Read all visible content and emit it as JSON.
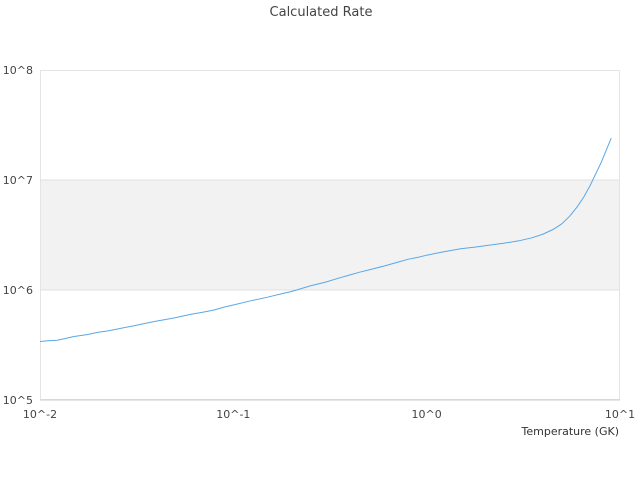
{
  "chart_data": {
    "type": "line",
    "title": "Calculated Rate",
    "xlabel": "Temperature (GK)",
    "ylabel": "",
    "x_scale": "log",
    "y_scale": "log",
    "xlim": [
      0.01,
      10
    ],
    "ylim": [
      100000,
      100000000
    ],
    "x_ticks": [
      0.01,
      0.1,
      1,
      10
    ],
    "x_tick_labels": [
      "10^-2",
      "10^-1",
      "10^0",
      "10^1"
    ],
    "y_ticks": [
      100000,
      1000000,
      10000000,
      100000000
    ],
    "y_tick_labels": [
      "10^5",
      "10^6",
      "10^7",
      "10^8"
    ],
    "shaded_band": [
      1000000,
      10000000
    ],
    "grid": false,
    "colors": {
      "line": "#5aa7e6",
      "band": "#f2f2f2",
      "axis": "#cccccc"
    },
    "series": [
      {
        "x": [
          0.01,
          0.011,
          0.0123,
          0.0135,
          0.015,
          0.0175,
          0.02,
          0.0225,
          0.025,
          0.03,
          0.035,
          0.04,
          0.045,
          0.05,
          0.06,
          0.07,
          0.08,
          0.09,
          0.1,
          0.12,
          0.15,
          0.18,
          0.2,
          0.25,
          0.3,
          0.35,
          0.4,
          0.45,
          0.5,
          0.6,
          0.7,
          0.8,
          0.9,
          1.0,
          1.2,
          1.5,
          1.8,
          2.0,
          2.5,
          3.0,
          3.5,
          4.0,
          4.5,
          5.0,
          5.5,
          6.0,
          6.5,
          7.0,
          8.0,
          9.0
        ],
        "y": [
          340000,
          345000,
          350000,
          362000,
          378000,
          393000,
          413000,
          425000,
          441000,
          470000,
          497000,
          522000,
          540000,
          560000,
          600000,
          630000,
          660000,
          700000,
          730000,
          790000,
          860000,
          930000,
          970000,
          1090000,
          1180000,
          1280000,
          1370000,
          1450000,
          1520000,
          1650000,
          1780000,
          1900000,
          1980000,
          2070000,
          2210000,
          2370000,
          2460000,
          2520000,
          2660000,
          2800000,
          2980000,
          3220000,
          3550000,
          4000000,
          4700000,
          5700000,
          7000000,
          8900000,
          14500000,
          24000000
        ]
      }
    ]
  }
}
